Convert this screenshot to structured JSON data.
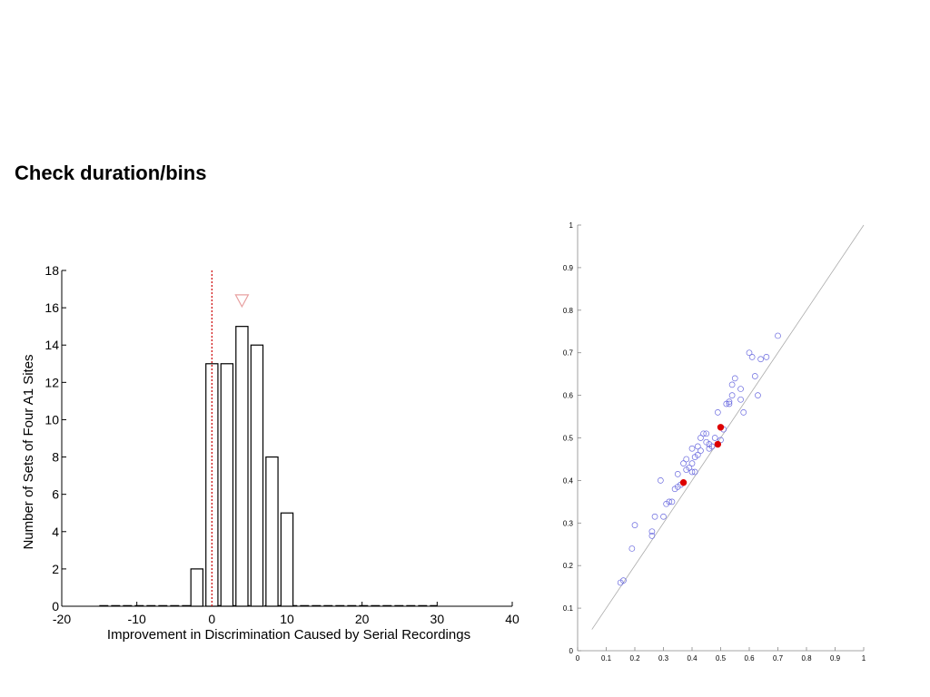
{
  "page": {
    "title": "Check duration/bins"
  },
  "chart_data": [
    {
      "type": "bar",
      "xlabel": "Improvement in Discrimination Caused by Serial Recordings",
      "ylabel": "Number of Sets of Four A1 Sites",
      "xlim": [
        -20,
        40
      ],
      "ylim": [
        0,
        18
      ],
      "xticks": [
        -20,
        -10,
        0,
        10,
        20,
        30,
        40
      ],
      "yticks": [
        0,
        2,
        4,
        6,
        8,
        10,
        12,
        14,
        16,
        18
      ],
      "bin_width": 2,
      "bin_centers": [
        -2,
        0,
        2,
        4,
        6,
        8,
        10
      ],
      "values": [
        2,
        13,
        13,
        15,
        14,
        8,
        5
      ],
      "zero_line": {
        "x": 0,
        "color": "#cc0000",
        "style": "dotted"
      },
      "mean_marker": {
        "x": 4,
        "y": 16.4,
        "shape": "triangle-down",
        "color": "#e8a0a0"
      },
      "baseline_dash_range": [
        -15,
        30
      ],
      "grid": false
    },
    {
      "type": "scatter",
      "xlim": [
        0,
        1
      ],
      "ylim": [
        0,
        1
      ],
      "xticks": [
        "0",
        "0.1",
        "0.2",
        "0.3",
        "0.4",
        "0.5",
        "0.6",
        "0.7",
        "0.8",
        "0.9",
        "1"
      ],
      "yticks": [
        "0",
        "0.1",
        "0.2",
        "0.3",
        "0.4",
        "0.5",
        "0.6",
        "0.7",
        "0.8",
        "0.9",
        "1"
      ],
      "identity_line": [
        [
          0.05,
          0.05
        ],
        [
          1.0,
          1.0
        ]
      ],
      "series": [
        {
          "marker": "open-circle",
          "color": "#6a6adf",
          "points": [
            [
              0.15,
              0.16
            ],
            [
              0.16,
              0.165
            ],
            [
              0.19,
              0.24
            ],
            [
              0.2,
              0.295
            ],
            [
              0.26,
              0.27
            ],
            [
              0.26,
              0.28
            ],
            [
              0.27,
              0.315
            ],
            [
              0.3,
              0.315
            ],
            [
              0.31,
              0.345
            ],
            [
              0.32,
              0.35
            ],
            [
              0.33,
              0.35
            ],
            [
              0.29,
              0.4
            ],
            [
              0.34,
              0.38
            ],
            [
              0.35,
              0.385
            ],
            [
              0.36,
              0.39
            ],
            [
              0.35,
              0.415
            ],
            [
              0.37,
              0.44
            ],
            [
              0.38,
              0.45
            ],
            [
              0.38,
              0.425
            ],
            [
              0.39,
              0.43
            ],
            [
              0.4,
              0.44
            ],
            [
              0.4,
              0.42
            ],
            [
              0.41,
              0.42
            ],
            [
              0.4,
              0.475
            ],
            [
              0.41,
              0.455
            ],
            [
              0.42,
              0.46
            ],
            [
              0.42,
              0.48
            ],
            [
              0.43,
              0.47
            ],
            [
              0.43,
              0.5
            ],
            [
              0.44,
              0.51
            ],
            [
              0.45,
              0.51
            ],
            [
              0.45,
              0.49
            ],
            [
              0.46,
              0.485
            ],
            [
              0.46,
              0.475
            ],
            [
              0.47,
              0.48
            ],
            [
              0.48,
              0.5
            ],
            [
              0.49,
              0.56
            ],
            [
              0.5,
              0.495
            ],
            [
              0.51,
              0.52
            ],
            [
              0.52,
              0.58
            ],
            [
              0.53,
              0.58
            ],
            [
              0.53,
              0.585
            ],
            [
              0.54,
              0.6
            ],
            [
              0.54,
              0.625
            ],
            [
              0.55,
              0.64
            ],
            [
              0.57,
              0.59
            ],
            [
              0.57,
              0.615
            ],
            [
              0.58,
              0.56
            ],
            [
              0.6,
              0.7
            ],
            [
              0.61,
              0.69
            ],
            [
              0.62,
              0.645
            ],
            [
              0.63,
              0.6
            ],
            [
              0.64,
              0.685
            ],
            [
              0.66,
              0.69
            ],
            [
              0.7,
              0.74
            ]
          ]
        },
        {
          "marker": "filled-circle",
          "color": "#dd0000",
          "points": [
            [
              0.37,
              0.395
            ],
            [
              0.49,
              0.485
            ],
            [
              0.5,
              0.525
            ]
          ]
        }
      ],
      "grid": false
    }
  ]
}
